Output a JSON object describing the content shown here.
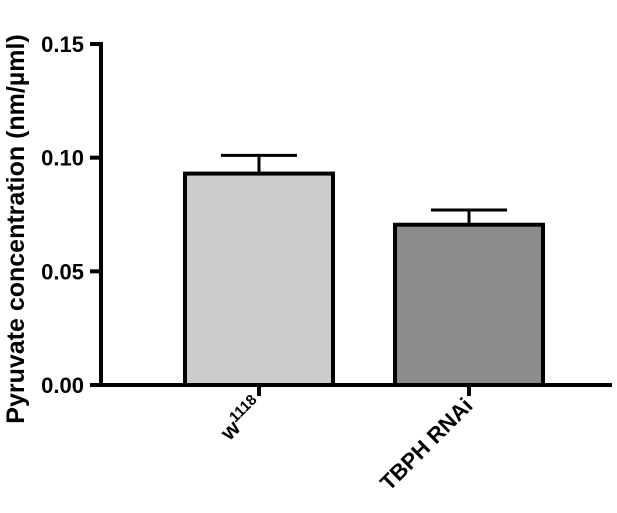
{
  "chart_data": {
    "type": "bar",
    "title": "",
    "xlabel": "",
    "ylabel": "Pyruvate concentration (nm/µml)",
    "ylim": [
      0,
      0.15
    ],
    "yticks": [
      "0.00",
      "0.05",
      "0.10",
      "0.15"
    ],
    "categories": [
      {
        "base": "w",
        "sup": "1118"
      },
      {
        "base": "TBPH RNAi",
        "sup": ""
      }
    ],
    "values": [
      0.093,
      0.0705
    ],
    "errors": [
      0.008,
      0.0065
    ],
    "bar_colors": [
      "#cccccc",
      "#8c8c8c"
    ],
    "bar_edge": "#000000",
    "grid": false
  }
}
